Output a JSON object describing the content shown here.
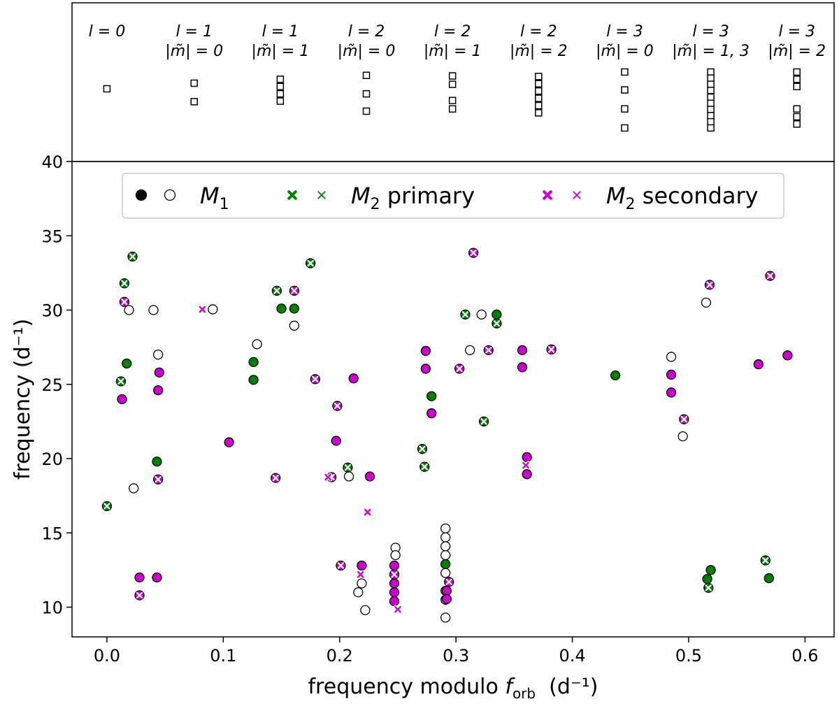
{
  "chart_data": {
    "type": "scatter",
    "xlabel": "frequency modulo f_orb  (d⁻¹)",
    "xlabel_parts": {
      "main": "frequency modulo ",
      "var": "f",
      "sub": "orb",
      "unit": "  (d⁻¹)"
    },
    "ylabel": "frequency (d⁻¹)",
    "xlim": [
      -0.03,
      0.625
    ],
    "ylim": [
      8,
      40
    ],
    "xticks": [
      0.0,
      0.1,
      0.2,
      0.3,
      0.4,
      0.5,
      0.6
    ],
    "xtick_labels": [
      "0.0",
      "0.1",
      "0.2",
      "0.3",
      "0.4",
      "0.5",
      "0.6"
    ],
    "yticks": [
      10,
      15,
      20,
      25,
      30,
      35,
      40
    ],
    "ytick_labels": [
      "10",
      "15",
      "20",
      "25",
      "30",
      "35",
      "40"
    ],
    "colors": {
      "m1": "#000000",
      "primary": "#008000",
      "secondary": "#cc00cc"
    },
    "legend": {
      "placement": "top-center",
      "entries": [
        {
          "label": "M₁",
          "label_var": "M",
          "label_sub": "1",
          "key": "m1"
        },
        {
          "label": "M₂ primary",
          "label_var": "M",
          "label_sub": "2",
          "label_rest": " primary",
          "key": "primary"
        },
        {
          "label": "M₂ secondary",
          "label_var": "M",
          "label_sub": "2",
          "label_rest": " secondary",
          "key": "secondary"
        }
      ]
    },
    "mode_panel": {
      "columns": [
        {
          "l": "l = 0",
          "m": "",
          "x": 0.0,
          "rel": [
            0.3
          ]
        },
        {
          "l": "l = 1",
          "m": "|m̃| = 0",
          "x": 0.075,
          "rel": [
            0.2,
            0.53
          ]
        },
        {
          "l": "l = 1",
          "m": "|m̃| = 1",
          "x": 0.149,
          "rel": [
            0.13,
            0.26,
            0.39,
            0.52
          ]
        },
        {
          "l": "l = 2",
          "m": "|m̃| = 0",
          "x": 0.223,
          "rel": [
            0.06,
            0.39,
            0.7
          ]
        },
        {
          "l": "l = 2",
          "m": "|m̃| = 1",
          "x": 0.297,
          "rel": [
            0.07,
            0.22,
            0.51,
            0.66
          ]
        },
        {
          "l": "l = 2",
          "m": "|m̃| = 2",
          "x": 0.371,
          "rel": [
            0.08,
            0.21,
            0.34,
            0.47,
            0.6,
            0.73
          ]
        },
        {
          "l": "l = 3",
          "m": "|m̃| = 0",
          "x": 0.445,
          "rel": [
            0.0,
            0.32,
            0.66,
            1.0
          ]
        },
        {
          "l": "l = 3",
          "m": "|m̃| = 1, 3",
          "x": 0.519,
          "rel": [
            0.0,
            0.11,
            0.22,
            0.33,
            0.45,
            0.56,
            0.67,
            0.78,
            0.89,
            1.0
          ]
        },
        {
          "l": "l = 3",
          "m": "|m̃| = 2",
          "x": 0.593,
          "rel": [
            0.0,
            0.13,
            0.26,
            0.66,
            0.8,
            0.93
          ]
        }
      ]
    },
    "series": [
      {
        "name": "M₁ (filled)",
        "key": "m1",
        "marker": "circle",
        "filled": true,
        "cross": false,
        "points": []
      },
      {
        "name": "M₁ (open)",
        "key": "m1",
        "marker": "circle",
        "filled": false,
        "cross": false,
        "points": [
          [
            0.019,
            30.0
          ],
          [
            0.04,
            30.0
          ],
          [
            0.091,
            30.05
          ],
          [
            0.023,
            18.0
          ],
          [
            0.044,
            27.0
          ],
          [
            0.129,
            27.7
          ],
          [
            0.161,
            28.95
          ],
          [
            0.208,
            18.8
          ],
          [
            0.216,
            11.0
          ],
          [
            0.219,
            11.6
          ],
          [
            0.222,
            9.8
          ],
          [
            0.248,
            14.0
          ],
          [
            0.248,
            13.5
          ],
          [
            0.291,
            15.3
          ],
          [
            0.291,
            14.7
          ],
          [
            0.291,
            14.1
          ],
          [
            0.291,
            13.5
          ],
          [
            0.291,
            12.3
          ],
          [
            0.291,
            11.1
          ],
          [
            0.291,
            10.5
          ],
          [
            0.291,
            9.3
          ],
          [
            0.312,
            27.3
          ],
          [
            0.322,
            29.7
          ],
          [
            0.485,
            26.85
          ],
          [
            0.495,
            21.5
          ],
          [
            0.515,
            30.5
          ]
        ]
      },
      {
        "name": "M₂ primary (filled)",
        "key": "primary",
        "marker": "circle",
        "filled": true,
        "cross": false,
        "points": [
          [
            0.017,
            26.4
          ],
          [
            0.043,
            19.8
          ],
          [
            0.126,
            26.5
          ],
          [
            0.126,
            25.3
          ],
          [
            0.15,
            30.1
          ],
          [
            0.161,
            30.1
          ],
          [
            0.279,
            24.2
          ],
          [
            0.291,
            12.9
          ],
          [
            0.335,
            29.7
          ],
          [
            0.437,
            25.6
          ],
          [
            0.516,
            11.9
          ],
          [
            0.519,
            12.5
          ],
          [
            0.569,
            11.95
          ]
        ]
      },
      {
        "name": "M₂ primary (open)",
        "key": "primary",
        "marker": "circle",
        "filled": true,
        "cross": true,
        "points": [
          [
            0.0,
            16.8
          ],
          [
            0.012,
            25.2
          ],
          [
            0.015,
            31.8
          ],
          [
            0.022,
            33.6
          ],
          [
            0.146,
            31.3
          ],
          [
            0.175,
            33.15
          ],
          [
            0.207,
            19.4
          ],
          [
            0.271,
            20.65
          ],
          [
            0.273,
            19.45
          ],
          [
            0.308,
            29.7
          ],
          [
            0.324,
            22.5
          ],
          [
            0.335,
            29.1
          ],
          [
            0.517,
            11.3
          ],
          [
            0.566,
            13.15
          ]
        ]
      },
      {
        "name": "M₂ secondary (filled)",
        "key": "secondary",
        "marker": "circle",
        "filled": true,
        "cross": false,
        "points": [
          [
            0.013,
            24.0
          ],
          [
            0.028,
            12.0
          ],
          [
            0.043,
            12.0
          ],
          [
            0.044,
            24.6
          ],
          [
            0.045,
            25.8
          ],
          [
            0.105,
            21.1
          ],
          [
            0.197,
            21.2
          ],
          [
            0.212,
            25.4
          ],
          [
            0.219,
            12.8
          ],
          [
            0.226,
            18.8
          ],
          [
            0.247,
            12.8
          ],
          [
            0.247,
            12.2
          ],
          [
            0.247,
            11.6
          ],
          [
            0.247,
            11.0
          ],
          [
            0.247,
            10.4
          ],
          [
            0.274,
            27.25
          ],
          [
            0.274,
            26.05
          ],
          [
            0.279,
            23.05
          ],
          [
            0.292,
            11.1
          ],
          [
            0.292,
            10.55
          ],
          [
            0.357,
            27.3
          ],
          [
            0.357,
            26.15
          ],
          [
            0.361,
            20.1
          ],
          [
            0.361,
            18.95
          ],
          [
            0.485,
            25.65
          ],
          [
            0.485,
            24.45
          ],
          [
            0.56,
            26.35
          ],
          [
            0.585,
            26.95
          ]
        ]
      },
      {
        "name": "M₂ secondary (open)",
        "key": "secondary",
        "marker": "circle",
        "filled": true,
        "cross": true,
        "points": [
          [
            0.015,
            30.55
          ],
          [
            0.028,
            10.8
          ],
          [
            0.044,
            18.6
          ],
          [
            0.145,
            18.7
          ],
          [
            0.161,
            31.3
          ],
          [
            0.179,
            25.35
          ],
          [
            0.198,
            23.55
          ],
          [
            0.193,
            18.75
          ],
          [
            0.201,
            12.8
          ],
          [
            0.247,
            12.2
          ],
          [
            0.294,
            11.7
          ],
          [
            0.303,
            26.05
          ],
          [
            0.315,
            33.85
          ],
          [
            0.328,
            27.3
          ],
          [
            0.382,
            27.35
          ],
          [
            0.496,
            22.65
          ],
          [
            0.518,
            31.7
          ],
          [
            0.57,
            32.3
          ]
        ]
      },
      {
        "name": "M₂ primary (cross only)",
        "key": "primary",
        "marker": "x",
        "filled": false,
        "cross": true,
        "points": []
      },
      {
        "name": "M₂ secondary (cross only)",
        "key": "secondary",
        "marker": "x",
        "filled": false,
        "cross": true,
        "points": [
          [
            0.082,
            30.05
          ],
          [
            0.224,
            16.4
          ],
          [
            0.218,
            12.2
          ],
          [
            0.25,
            9.85
          ],
          [
            0.19,
            18.75
          ],
          [
            0.36,
            19.55
          ]
        ]
      }
    ]
  }
}
